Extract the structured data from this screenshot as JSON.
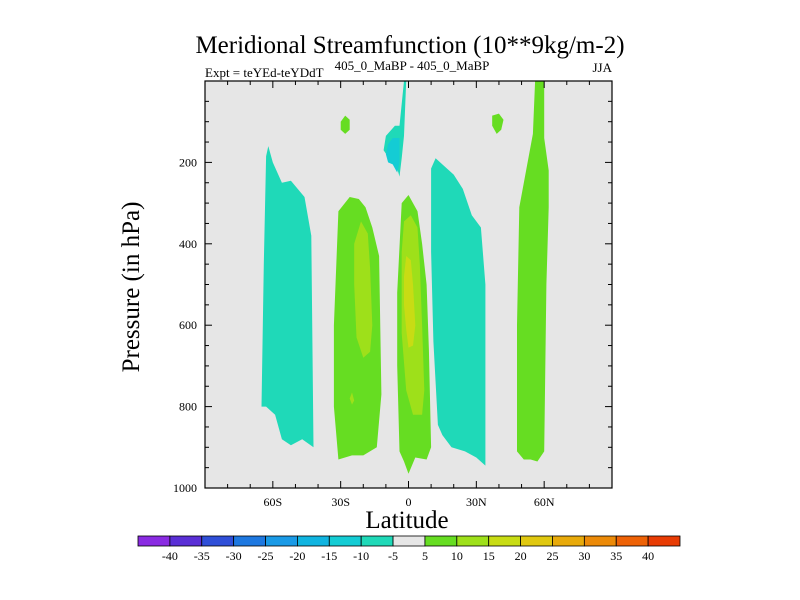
{
  "chart_data": {
    "type": "contour",
    "title": "Meridional Streamfunction (10**9kg/m-2)",
    "subtitle": "405_0_MaBP - 405_0_MaBP",
    "left_string": "Expt = teYEd-teYDdT",
    "right_string": "JJA",
    "xlabel": "Latitude",
    "ylabel": "Pressure (in hPa)",
    "xlim": [
      -90,
      90
    ],
    "ylim": [
      1000,
      0
    ],
    "x_ticks": [
      {
        "value": -60,
        "label": "60S"
      },
      {
        "value": -30,
        "label": "30S"
      },
      {
        "value": 0,
        "label": "0"
      },
      {
        "value": 30,
        "label": "30N"
      },
      {
        "value": 60,
        "label": "60N"
      }
    ],
    "y_ticks": [
      {
        "value": 200,
        "label": "200"
      },
      {
        "value": 400,
        "label": "400"
      },
      {
        "value": 600,
        "label": "600"
      },
      {
        "value": 800,
        "label": "800"
      },
      {
        "value": 1000,
        "label": "1000"
      }
    ],
    "colorbar": {
      "labels": [
        "-40",
        "-35",
        "-30",
        "-25",
        "-20",
        "-15",
        "-10",
        "-5",
        "5",
        "10",
        "15",
        "20",
        "25",
        "30",
        "35",
        "40"
      ],
      "colors": [
        "#8a2be2",
        "#5a2fd6",
        "#2f4fd8",
        "#1e78e0",
        "#1a9ae6",
        "#10b4e0",
        "#14ccd4",
        "#1fd9b8",
        "#e6e6e6",
        "#66dd22",
        "#9ee01a",
        "#c8dc14",
        "#e0c810",
        "#e8aa0a",
        "#ec8a08",
        "#ee6206",
        "#e83c04"
      ]
    },
    "regions": [
      {
        "label": "negative -10 to -5",
        "color": "#1fd9b8",
        "points": [
          [
            -65,
            800
          ],
          [
            -64,
            450
          ],
          [
            -63,
            185
          ],
          [
            -62,
            160
          ],
          [
            -60,
            200
          ],
          [
            -56,
            250
          ],
          [
            -52,
            245
          ],
          [
            -46,
            285
          ],
          [
            -43,
            380
          ],
          [
            -42,
            900
          ],
          [
            -47,
            880
          ],
          [
            -52,
            895
          ],
          [
            -56,
            880
          ],
          [
            -59,
            820
          ],
          [
            -63,
            800
          ]
        ]
      },
      {
        "label": "negative -10 to -5",
        "color": "#1fd9b8",
        "points": [
          [
            10,
            215
          ],
          [
            12,
            190
          ],
          [
            16,
            210
          ],
          [
            20,
            230
          ],
          [
            24,
            265
          ],
          [
            28,
            330
          ],
          [
            32,
            360
          ],
          [
            34,
            500
          ],
          [
            34,
            945
          ],
          [
            30,
            925
          ],
          [
            25,
            910
          ],
          [
            19,
            900
          ],
          [
            15,
            870
          ],
          [
            13,
            845
          ],
          [
            11,
            640
          ],
          [
            10,
            420
          ]
        ]
      },
      {
        "label": "negative -10 to -5",
        "color": "#1fd9b8",
        "points": [
          [
            -5,
            215
          ],
          [
            -8,
            195
          ],
          [
            -11,
            170
          ],
          [
            -10,
            135
          ],
          [
            -6,
            110
          ],
          [
            -4,
            110
          ],
          [
            -2,
            0
          ],
          [
            -1,
            0
          ],
          [
            -2,
            135
          ],
          [
            -3,
            190
          ],
          [
            -4,
            235
          ]
        ]
      },
      {
        "label": "negative -15 to -10",
        "color": "#14ccd4",
        "points": [
          [
            -10,
            180
          ],
          [
            -9,
            155
          ],
          [
            -7,
            140
          ],
          [
            -4,
            140
          ],
          [
            -4,
            200
          ],
          [
            -5,
            225
          ],
          [
            -7,
            205
          ],
          [
            -9,
            200
          ]
        ]
      },
      {
        "label": "positive 5 to 10",
        "color": "#66dd22",
        "points": [
          [
            -31,
            930
          ],
          [
            -33,
            800
          ],
          [
            -33,
            600
          ],
          [
            -31,
            320
          ],
          [
            -26,
            285
          ],
          [
            -22,
            290
          ],
          [
            -19,
            310
          ],
          [
            -16,
            360
          ],
          [
            -13,
            430
          ],
          [
            -12,
            770
          ],
          [
            -14,
            900
          ],
          [
            -20,
            920
          ],
          [
            -25,
            920
          ]
        ]
      },
      {
        "label": "positive 5 to 10",
        "color": "#66dd22",
        "points": [
          [
            -4,
            910
          ],
          [
            -5,
            700
          ],
          [
            -5,
            520
          ],
          [
            -3,
            300
          ],
          [
            0,
            280
          ],
          [
            4,
            320
          ],
          [
            6,
            400
          ],
          [
            8,
            500
          ],
          [
            9,
            660
          ],
          [
            10,
            900
          ],
          [
            8,
            930
          ],
          [
            3,
            925
          ],
          [
            0,
            965
          ],
          [
            -2,
            935
          ]
        ]
      },
      {
        "label": "positive 5 to 10",
        "color": "#66dd22",
        "points": [
          [
            48,
            910
          ],
          [
            48,
            600
          ],
          [
            49,
            310
          ],
          [
            52,
            220
          ],
          [
            55,
            130
          ],
          [
            56,
            0
          ],
          [
            60,
            0
          ],
          [
            60,
            140
          ],
          [
            62,
            220
          ],
          [
            62,
            310
          ],
          [
            61,
            500
          ],
          [
            60,
            910
          ],
          [
            57,
            935
          ],
          [
            54,
            930
          ],
          [
            51,
            930
          ]
        ]
      },
      {
        "label": "positive 5 to 10",
        "color": "#66dd22",
        "points": [
          [
            -30,
            100
          ],
          [
            -28,
            85
          ],
          [
            -26,
            95
          ],
          [
            -26,
            120
          ],
          [
            -28,
            130
          ],
          [
            -30,
            120
          ]
        ]
      },
      {
        "label": "positive 5 to 10",
        "color": "#66dd22",
        "points": [
          [
            37,
            85
          ],
          [
            40,
            80
          ],
          [
            42,
            95
          ],
          [
            41,
            120
          ],
          [
            39,
            130
          ],
          [
            37,
            110
          ]
        ]
      },
      {
        "label": "positive 10 to 15",
        "color": "#9ee01a",
        "points": [
          [
            -24,
            400
          ],
          [
            -21,
            345
          ],
          [
            -18,
            375
          ],
          [
            -17,
            460
          ],
          [
            -16,
            600
          ],
          [
            -17,
            665
          ],
          [
            -20,
            680
          ],
          [
            -23,
            630
          ],
          [
            -24,
            500
          ]
        ]
      },
      {
        "label": "positive 10 to 15",
        "color": "#9ee01a",
        "points": [
          [
            -3,
            420
          ],
          [
            -2,
            345
          ],
          [
            1,
            330
          ],
          [
            4,
            360
          ],
          [
            5,
            450
          ],
          [
            6,
            600
          ],
          [
            7,
            760
          ],
          [
            6,
            820
          ],
          [
            2,
            820
          ],
          [
            -1,
            760
          ],
          [
            -3,
            620
          ]
        ]
      },
      {
        "label": "positive 10 to 15",
        "color": "#9ee01a",
        "points": [
          [
            -26,
            780
          ],
          [
            -25,
            765
          ],
          [
            -24,
            785
          ],
          [
            -25,
            795
          ]
        ]
      },
      {
        "label": "positive 15 to 20",
        "color": "#c8dc14",
        "points": [
          [
            -2,
            480
          ],
          [
            -1,
            430
          ],
          [
            1,
            440
          ],
          [
            2,
            500
          ],
          [
            3,
            600
          ],
          [
            2,
            650
          ],
          [
            0,
            655
          ],
          [
            -1,
            610
          ],
          [
            -2,
            550
          ]
        ]
      }
    ]
  }
}
